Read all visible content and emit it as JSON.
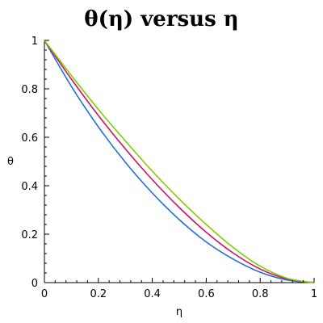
{
  "chart_data": {
    "type": "line",
    "title": "θ(η) versus η",
    "xlabel": "η",
    "ylabel": "θ",
    "xlim": [
      0,
      1
    ],
    "ylim": [
      0,
      1
    ],
    "xticks": [
      "0",
      "0.2",
      "0.4",
      "0.6",
      "0.8",
      "1"
    ],
    "yticks": [
      "0",
      "0.2",
      "0.4",
      "0.6",
      "0.8",
      "1"
    ],
    "grid": false,
    "x": [
      0,
      0.1,
      0.2,
      0.3,
      0.4,
      0.5,
      0.6,
      0.7,
      0.8,
      0.9,
      1.0
    ],
    "series": [
      {
        "color": "#1f6fd6",
        "values": [
          1.0,
          0.81,
          0.643,
          0.497,
          0.37,
          0.26,
          0.168,
          0.097,
          0.043,
          0.011,
          0.0
        ]
      },
      {
        "color": "#cc1166",
        "values": [
          1.0,
          0.84,
          0.69,
          0.552,
          0.425,
          0.31,
          0.208,
          0.122,
          0.056,
          0.015,
          0.0
        ]
      },
      {
        "color": "#7fcc00",
        "values": [
          1.0,
          0.855,
          0.715,
          0.585,
          0.46,
          0.345,
          0.24,
          0.145,
          0.068,
          0.018,
          0.0
        ]
      }
    ]
  }
}
